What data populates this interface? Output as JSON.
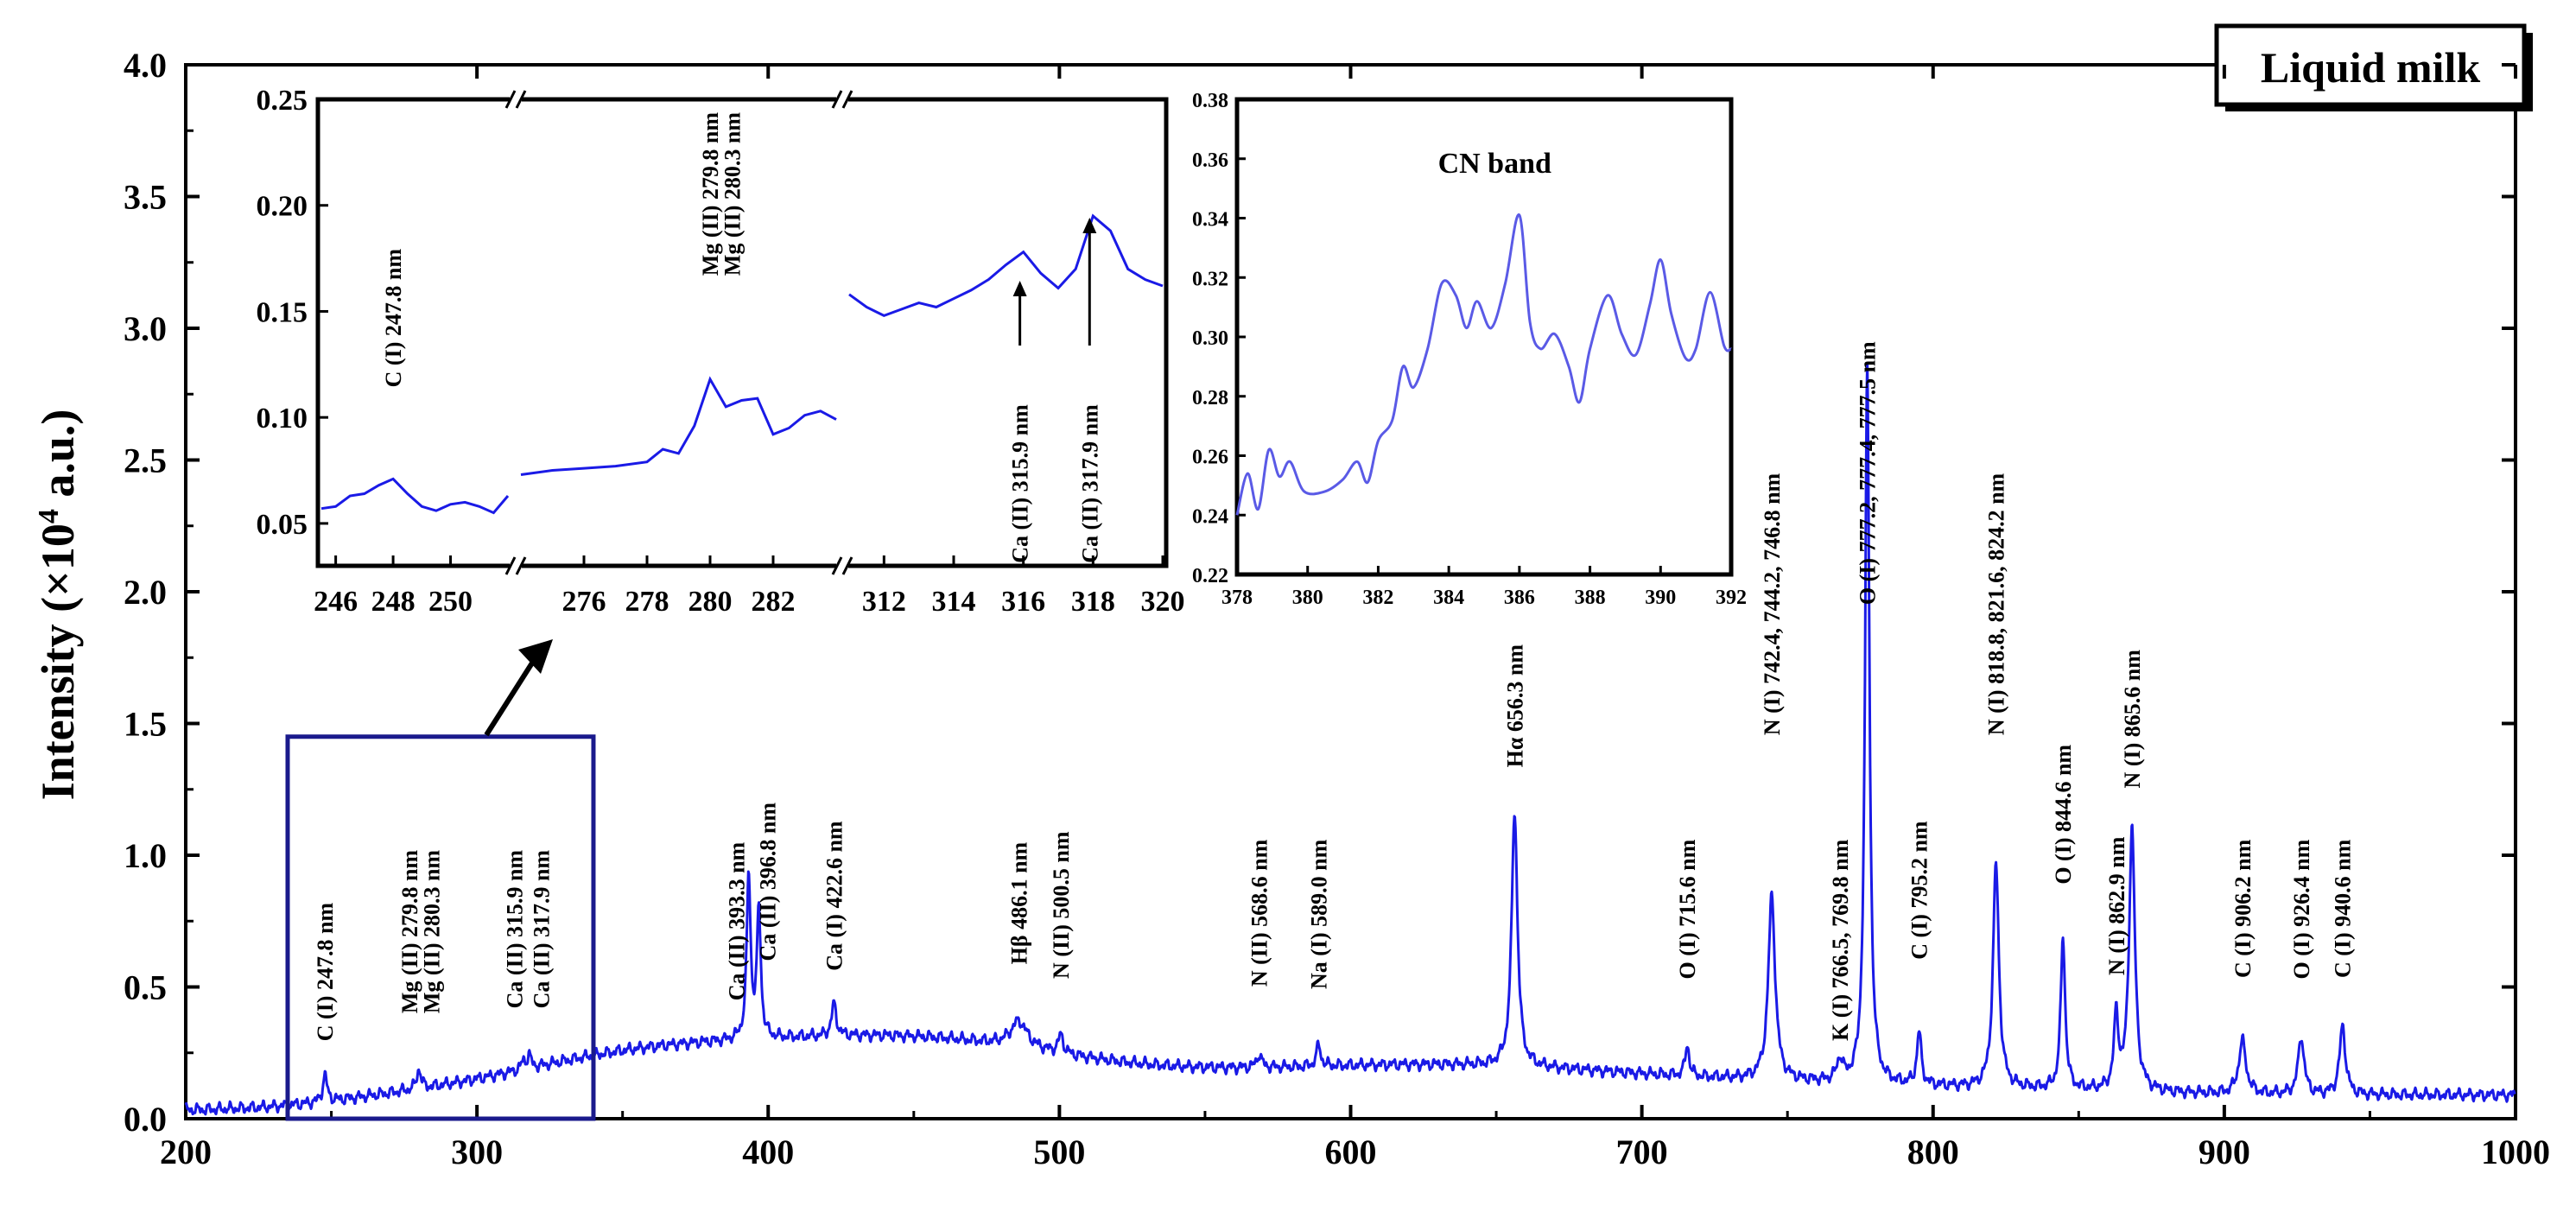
{
  "chart_data": {
    "type": "line",
    "title": "Liquid milk",
    "xlabel": "",
    "ylabel": "Intensity (×10⁴ a.u.)",
    "ylabel_parts": [
      "Intensity (×10",
      "4",
      " a.u.)"
    ],
    "xlim": [
      200,
      1000
    ],
    "ylim": [
      0.0,
      4.0
    ],
    "x_ticks": [
      200,
      300,
      400,
      500,
      600,
      700,
      800,
      900,
      1000
    ],
    "x_tick_labels": [
      "200",
      "300",
      "400",
      "500",
      "600",
      "700",
      "800",
      "900",
      "1000"
    ],
    "y_ticks": [
      0.0,
      0.5,
      1.0,
      1.5,
      2.0,
      2.5,
      3.0,
      3.5,
      4.0
    ],
    "y_tick_labels": [
      "0.0",
      "0.5",
      "1.0",
      "1.5",
      "2.0",
      "2.5",
      "3.0",
      "3.5",
      "4.0"
    ],
    "line_color": "#1a1ae6",
    "frame_color": "#000000",
    "box_color": "#1a1a8c",
    "zoom_box": {
      "x_range": [
        235,
        340
      ],
      "y_range": [
        0,
        1.45
      ]
    },
    "peaks": [
      {
        "x": 247.8,
        "y": 0.1,
        "width": 0.9,
        "label": "C (I) 247.8 nm"
      },
      {
        "x": 279.8,
        "y": 0.04,
        "width": 0.8,
        "label": "Mg (II) 279.8 nm"
      },
      {
        "x": 280.3,
        "y": 0.04,
        "width": 0.8,
        "label": "Mg (II) 280.3 nm"
      },
      {
        "x": 315.9,
        "y": 0.03,
        "width": 0.8,
        "label": "Ca (II) 315.9 nm"
      },
      {
        "x": 317.9,
        "y": 0.05,
        "width": 0.8,
        "label": "Ca (II) 317.9 nm"
      },
      {
        "x": 393.3,
        "y": 0.62,
        "width": 0.8,
        "label": "Ca (II) 393.3 nm"
      },
      {
        "x": 396.8,
        "y": 0.48,
        "width": 0.8,
        "label": "Ca (II) 396.8 nm"
      },
      {
        "x": 422.6,
        "y": 0.12,
        "width": 1.0,
        "label": "Ca (I) 422.6 nm"
      },
      {
        "x": 486.1,
        "y": 0.1,
        "width": 3.5,
        "label": "Hβ 486.1 nm"
      },
      {
        "x": 500.5,
        "y": 0.07,
        "width": 1.0,
        "label": "N (II) 500.5 nm"
      },
      {
        "x": 568.6,
        "y": 0.05,
        "width": 1.0,
        "label": "N (II) 568.6 nm"
      },
      {
        "x": 589.0,
        "y": 0.08,
        "width": 0.9,
        "label": "Na (I) 589.0 nm"
      },
      {
        "x": 656.3,
        "y": 0.97,
        "width": 1.2,
        "label": "Hα 656.3 nm"
      },
      {
        "x": 715.6,
        "y": 0.12,
        "width": 0.8,
        "label": "O (I) 715.6 nm"
      },
      {
        "x": 744.6,
        "y": 0.7,
        "width": 1.4,
        "label": "N (I) 742.4, 744.2, 746.8 nm"
      },
      {
        "x": 768.0,
        "y": 0.08,
        "width": 1.2,
        "label": "K (I) 766.5, 769.8 nm"
      },
      {
        "x": 777.4,
        "y": 2.72,
        "width": 0.9,
        "label": "O (I) 777.2, 777.4, 777.5 nm"
      },
      {
        "x": 795.2,
        "y": 0.2,
        "width": 0.9,
        "label": "C (I) 795.2 nm"
      },
      {
        "x": 821.6,
        "y": 0.85,
        "width": 1.2,
        "label": "N (I) 818.8, 821.6, 824.2 nm"
      },
      {
        "x": 844.6,
        "y": 0.58,
        "width": 0.9,
        "label": "O (I) 844.6 nm"
      },
      {
        "x": 862.9,
        "y": 0.28,
        "width": 0.9,
        "label": "N (I) 862.9 nm"
      },
      {
        "x": 868.3,
        "y": 1.0,
        "width": 1.2,
        "label": "N (I) 865.6 nm"
      },
      {
        "x": 906.2,
        "y": 0.2,
        "width": 1.5,
        "label": "C (I) 906.2 nm"
      },
      {
        "x": 926.4,
        "y": 0.22,
        "width": 1.2,
        "label": "O (I) 926.4 nm"
      },
      {
        "x": 940.6,
        "y": 0.26,
        "width": 1.2,
        "label": "C (I) 940.6 nm"
      }
    ],
    "peak_label_tops": [
      [
        247.8,
        0.82
      ],
      [
        279.8,
        1.02
      ],
      [
        280.3,
        1.02
      ],
      [
        315.9,
        1.02
      ],
      [
        317.9,
        1.02
      ],
      [
        393.3,
        1.05
      ],
      [
        396.8,
        1.2
      ],
      [
        422.6,
        1.13
      ],
      [
        486.1,
        1.05
      ],
      [
        500.5,
        1.09
      ],
      [
        568.6,
        1.06
      ],
      [
        589.0,
        1.06
      ],
      [
        656.3,
        1.8
      ],
      [
        715.6,
        1.06
      ],
      [
        744.6,
        2.45
      ],
      [
        768.0,
        1.06
      ],
      [
        777.4,
        2.95
      ],
      [
        795.2,
        1.13
      ],
      [
        821.6,
        2.45
      ],
      [
        844.6,
        1.42
      ],
      [
        862.9,
        1.07
      ],
      [
        868.3,
        1.78
      ],
      [
        906.2,
        1.06
      ],
      [
        926.4,
        1.06
      ],
      [
        940.6,
        1.06
      ]
    ],
    "insets": [
      {
        "name": "uv-lines",
        "ylim": [
          0.03,
          0.25
        ],
        "y_ticks": [
          0.05,
          0.1,
          0.15,
          0.2,
          0.25
        ],
        "y_tick_labels": [
          "0.05",
          "0.10",
          "0.15",
          "0.20",
          "0.25"
        ],
        "segments": [
          {
            "x_range": [
              245.5,
              252.0
            ],
            "x_ticks": [
              246,
              248,
              250
            ],
            "x_tick_labels": [
              "246",
              "248",
              "250"
            ],
            "points": [
              [
                245.5,
                0.057
              ],
              [
                246.0,
                0.058
              ],
              [
                246.5,
                0.063
              ],
              [
                247.0,
                0.064
              ],
              [
                247.5,
                0.068
              ],
              [
                248.0,
                0.071
              ],
              [
                248.5,
                0.064
              ],
              [
                249.0,
                0.058
              ],
              [
                249.5,
                0.056
              ],
              [
                250.0,
                0.059
              ],
              [
                250.5,
                0.06
              ],
              [
                251.0,
                0.058
              ],
              [
                251.5,
                0.055
              ],
              [
                252.0,
                0.063
              ]
            ]
          },
          {
            "x_range": [
              274.0,
              284.0
            ],
            "x_ticks": [
              276,
              278,
              280,
              282
            ],
            "x_tick_labels": [
              "276",
              "278",
              "280",
              "282"
            ],
            "points": [
              [
                274.0,
                0.073
              ],
              [
                275.0,
                0.075
              ],
              [
                276.0,
                0.076
              ],
              [
                277.0,
                0.077
              ],
              [
                278.0,
                0.079
              ],
              [
                278.5,
                0.085
              ],
              [
                279.0,
                0.083
              ],
              [
                279.5,
                0.096
              ],
              [
                280.0,
                0.118
              ],
              [
                280.5,
                0.105
              ],
              [
                281.0,
                0.108
              ],
              [
                281.5,
                0.109
              ],
              [
                282.0,
                0.092
              ],
              [
                282.5,
                0.095
              ],
              [
                283.0,
                0.101
              ],
              [
                283.5,
                0.103
              ],
              [
                284.0,
                0.099
              ]
            ]
          },
          {
            "x_range": [
              311.0,
              320.0
            ],
            "x_ticks": [
              312,
              314,
              316,
              318,
              320
            ],
            "x_tick_labels": [
              "312",
              "314",
              "316",
              "318",
              "320"
            ],
            "points": [
              [
                311.0,
                0.158
              ],
              [
                311.5,
                0.152
              ],
              [
                312.0,
                0.148
              ],
              [
                312.5,
                0.151
              ],
              [
                313.0,
                0.154
              ],
              [
                313.5,
                0.152
              ],
              [
                314.0,
                0.156
              ],
              [
                314.5,
                0.16
              ],
              [
                315.0,
                0.165
              ],
              [
                315.5,
                0.172
              ],
              [
                316.0,
                0.178
              ],
              [
                316.5,
                0.168
              ],
              [
                317.0,
                0.161
              ],
              [
                317.5,
                0.17
              ],
              [
                318.0,
                0.195
              ],
              [
                318.5,
                0.188
              ],
              [
                319.0,
                0.17
              ],
              [
                319.5,
                0.165
              ],
              [
                320.0,
                0.162
              ]
            ]
          }
        ],
        "annotations": [
          {
            "x": 248.0,
            "label": "C (I) 247.8 nm"
          },
          {
            "x": 280.0,
            "label": "Mg (II) 279.8 nm"
          },
          {
            "x": 280.7,
            "label": "Mg (II) 280.3 nm"
          },
          {
            "x": 315.9,
            "label": "Ca (II) 315.9 nm"
          },
          {
            "x": 317.9,
            "label": "Ca (II) 317.9 nm"
          }
        ]
      },
      {
        "name": "cn-band",
        "title": "CN band",
        "xlim": [
          378,
          392
        ],
        "ylim": [
          0.22,
          0.38
        ],
        "x_ticks": [
          378,
          380,
          382,
          384,
          386,
          388,
          390,
          392
        ],
        "x_tick_labels": [
          "378",
          "380",
          "382",
          "384",
          "386",
          "388",
          "390",
          "392"
        ],
        "y_ticks": [
          0.22,
          0.24,
          0.26,
          0.28,
          0.3,
          0.32,
          0.34,
          0.36,
          0.38
        ],
        "y_tick_labels": [
          "0.22",
          "0.24",
          "0.26",
          "0.28",
          "0.30",
          "0.32",
          "0.34",
          "0.36",
          "0.38"
        ],
        "points": [
          [
            378.0,
            0.24
          ],
          [
            378.3,
            0.254
          ],
          [
            378.6,
            0.242
          ],
          [
            378.9,
            0.262
          ],
          [
            379.2,
            0.253
          ],
          [
            379.5,
            0.258
          ],
          [
            379.9,
            0.248
          ],
          [
            380.5,
            0.248
          ],
          [
            381.0,
            0.252
          ],
          [
            381.4,
            0.258
          ],
          [
            381.7,
            0.251
          ],
          [
            382.0,
            0.265
          ],
          [
            382.4,
            0.272
          ],
          [
            382.7,
            0.29
          ],
          [
            383.0,
            0.283
          ],
          [
            383.4,
            0.296
          ],
          [
            383.8,
            0.318
          ],
          [
            384.2,
            0.314
          ],
          [
            384.5,
            0.303
          ],
          [
            384.8,
            0.312
          ],
          [
            385.2,
            0.303
          ],
          [
            385.6,
            0.318
          ],
          [
            386.0,
            0.341
          ],
          [
            386.3,
            0.305
          ],
          [
            386.6,
            0.296
          ],
          [
            387.0,
            0.301
          ],
          [
            387.4,
            0.29
          ],
          [
            387.7,
            0.278
          ],
          [
            388.0,
            0.296
          ],
          [
            388.5,
            0.314
          ],
          [
            388.9,
            0.301
          ],
          [
            389.3,
            0.294
          ],
          [
            389.7,
            0.311
          ],
          [
            390.0,
            0.326
          ],
          [
            390.3,
            0.308
          ],
          [
            390.7,
            0.293
          ],
          [
            391.0,
            0.296
          ],
          [
            391.4,
            0.315
          ],
          [
            391.8,
            0.297
          ],
          [
            392.0,
            0.296
          ]
        ]
      }
    ]
  }
}
